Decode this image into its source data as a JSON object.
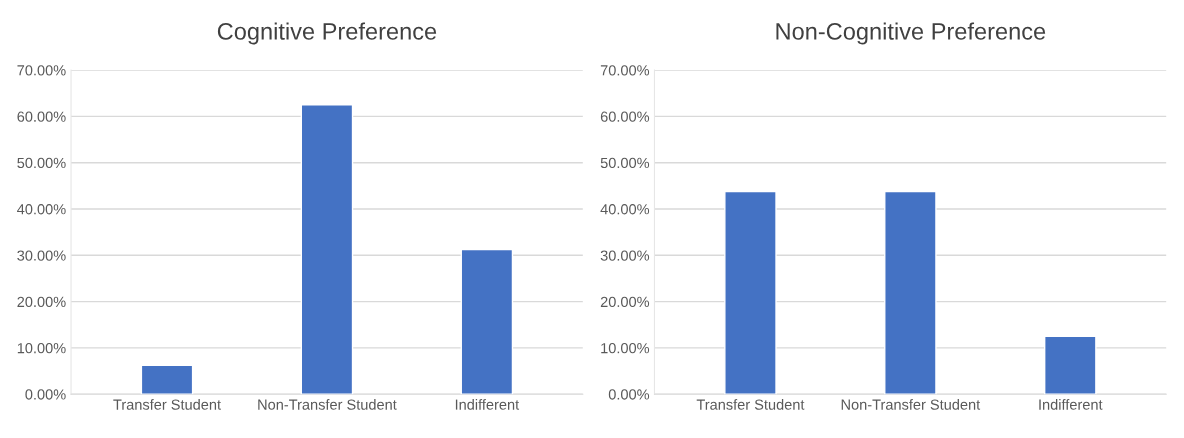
{
  "chart_data": [
    {
      "type": "bar",
      "title": "Cognitive Preference",
      "categories": [
        "Transfer Student",
        "Non-Transfer Student",
        "Indifferent"
      ],
      "values": [
        6.25,
        62.5,
        31.25
      ],
      "color": "#4472c4",
      "ylim": [
        0,
        70
      ],
      "yticks": [
        {
          "value": 0,
          "label": "0.00%"
        },
        {
          "value": 10,
          "label": "10.00%"
        },
        {
          "value": 20,
          "label": "20.00%"
        },
        {
          "value": 30,
          "label": "30.00%"
        },
        {
          "value": 40,
          "label": "40.00%"
        },
        {
          "value": 50,
          "label": "50.00%"
        },
        {
          "value": 60,
          "label": "60.00%"
        },
        {
          "value": 70,
          "label": "70.00%"
        }
      ],
      "grid": "y"
    },
    {
      "type": "bar",
      "title": "Non-Cognitive Preference",
      "categories": [
        "Transfer Student",
        "Non-Transfer Student",
        "Indifferent"
      ],
      "values": [
        43.75,
        43.75,
        12.5
      ],
      "color": "#4472c4",
      "ylim": [
        0,
        70
      ],
      "yticks": [
        {
          "value": 0,
          "label": "0.00%"
        },
        {
          "value": 10,
          "label": "10.00%"
        },
        {
          "value": 20,
          "label": "20.00%"
        },
        {
          "value": 30,
          "label": "30.00%"
        },
        {
          "value": 40,
          "label": "40.00%"
        },
        {
          "value": 50,
          "label": "50.00%"
        },
        {
          "value": 60,
          "label": "60.00%"
        },
        {
          "value": 70,
          "label": "70.00%"
        }
      ],
      "grid": "y"
    }
  ]
}
